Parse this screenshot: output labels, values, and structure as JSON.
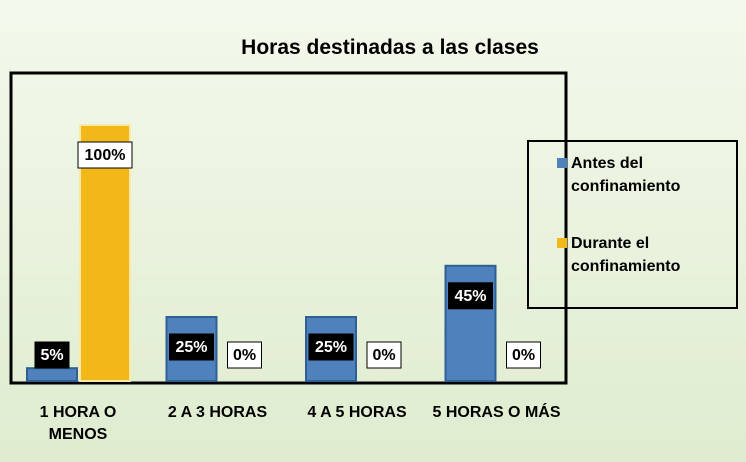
{
  "chart_data": {
    "type": "bar",
    "title": "Horas destinadas a las clases",
    "categories": [
      "1 HORA O MENOS",
      "2 A 3 HORAS",
      "4 A 5 HORAS",
      "5 HORAS O MÁS"
    ],
    "series": [
      {
        "name": "Antes del confinamiento",
        "color": "#4f81bd",
        "values": [
          5,
          25,
          25,
          45
        ],
        "value_labels": [
          "5%",
          "25%",
          "25%",
          "45%"
        ]
      },
      {
        "name": "Durante el confinamiento",
        "color": "#f2b81a",
        "values": [
          100,
          0,
          0,
          0
        ],
        "value_labels": [
          "100%",
          "0%",
          "0%",
          "0%"
        ]
      }
    ],
    "ylim": [
      0,
      100
    ],
    "legend": "right"
  }
}
